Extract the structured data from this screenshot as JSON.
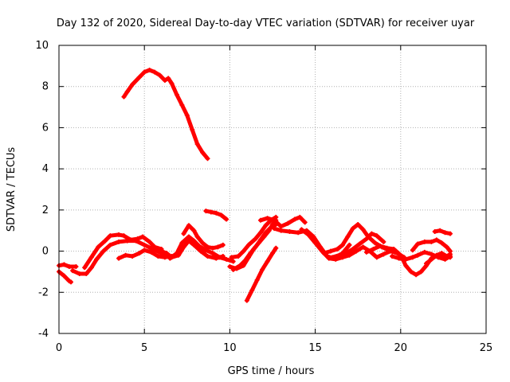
{
  "chart_data": {
    "type": "scatter",
    "title": "Day 132 of 2020, Sidereal Day-to-day VTEC variation (SDTVAR) for receiver uyar",
    "xlabel": "GPS time / hours",
    "ylabel": "SDTVAR / TECUs",
    "xlim": [
      0,
      25
    ],
    "ylim": [
      -4,
      10
    ],
    "grid": true,
    "x_ticks": [
      0,
      5,
      10,
      15,
      20,
      25
    ],
    "y_ticks": [
      -4,
      -2,
      0,
      2,
      4,
      6,
      8,
      10
    ],
    "x_tick_labels": [
      "0",
      "5",
      "10",
      "15",
      "20",
      "25"
    ],
    "y_tick_labels": [
      "-4",
      "-2",
      "0",
      "2",
      "4",
      "6",
      "8",
      "10"
    ],
    "color": "#ff0000",
    "series": [
      {
        "name": "s1",
        "points": [
          [
            0.0,
            -1.0
          ],
          [
            0.3,
            -1.2
          ],
          [
            0.6,
            -1.45
          ],
          [
            0.7,
            -1.5
          ]
        ]
      },
      {
        "name": "s2",
        "points": [
          [
            0.0,
            -0.7
          ],
          [
            0.3,
            -0.65
          ],
          [
            0.6,
            -0.75
          ],
          [
            1.0,
            -0.75
          ]
        ]
      },
      {
        "name": "s3",
        "points": [
          [
            0.8,
            -0.95
          ],
          [
            1.2,
            -1.1
          ],
          [
            1.6,
            -1.1
          ],
          [
            1.9,
            -0.8
          ],
          [
            2.2,
            -0.4
          ],
          [
            2.6,
            0.0
          ],
          [
            3.0,
            0.3
          ],
          [
            3.5,
            0.45
          ],
          [
            4.0,
            0.5
          ],
          [
            4.5,
            0.5
          ],
          [
            5.0,
            0.3
          ],
          [
            5.5,
            0.1
          ],
          [
            6.0,
            -0.1
          ],
          [
            6.5,
            -0.3
          ]
        ]
      },
      {
        "name": "s4",
        "points": [
          [
            1.5,
            -0.8
          ],
          [
            1.9,
            -0.3
          ],
          [
            2.3,
            0.2
          ],
          [
            2.7,
            0.5
          ],
          [
            3.0,
            0.75
          ],
          [
            3.5,
            0.8
          ],
          [
            3.8,
            0.75
          ],
          [
            4.2,
            0.55
          ],
          [
            4.6,
            0.6
          ],
          [
            4.9,
            0.7
          ],
          [
            5.3,
            0.45
          ],
          [
            5.6,
            0.2
          ],
          [
            6.0,
            0.1
          ]
        ]
      },
      {
        "name": "s5",
        "points": [
          [
            3.5,
            -0.35
          ],
          [
            3.9,
            -0.2
          ],
          [
            4.3,
            -0.25
          ],
          [
            4.7,
            -0.1
          ],
          [
            5.0,
            0.05
          ],
          [
            5.4,
            -0.05
          ],
          [
            5.8,
            -0.25
          ],
          [
            6.2,
            -0.3
          ],
          [
            6.6,
            -0.25
          ]
        ]
      },
      {
        "name": "s6",
        "points": [
          [
            3.8,
            7.5
          ],
          [
            4.0,
            7.75
          ],
          [
            4.3,
            8.1
          ],
          [
            4.7,
            8.45
          ],
          [
            5.0,
            8.7
          ],
          [
            5.3,
            8.8
          ],
          [
            5.6,
            8.7
          ],
          [
            5.9,
            8.55
          ],
          [
            6.2,
            8.3
          ],
          [
            6.4,
            8.4
          ],
          [
            6.6,
            8.15
          ],
          [
            6.9,
            7.6
          ],
          [
            7.2,
            7.1
          ],
          [
            7.5,
            6.6
          ],
          [
            7.8,
            5.9
          ],
          [
            8.1,
            5.2
          ],
          [
            8.4,
            4.8
          ],
          [
            8.7,
            4.5
          ]
        ]
      },
      {
        "name": "s7",
        "points": [
          [
            5.5,
            0.2
          ],
          [
            6.0,
            0.0
          ],
          [
            6.3,
            -0.1
          ],
          [
            6.6,
            -0.3
          ],
          [
            7.0,
            -0.2
          ],
          [
            7.3,
            0.2
          ],
          [
            7.6,
            0.5
          ],
          [
            7.9,
            0.3
          ],
          [
            8.3,
            0.0
          ],
          [
            8.7,
            -0.25
          ],
          [
            9.2,
            -0.35
          ],
          [
            9.6,
            -0.25
          ]
        ]
      },
      {
        "name": "s8",
        "points": [
          [
            6.5,
            -0.35
          ],
          [
            6.9,
            -0.1
          ],
          [
            7.2,
            0.4
          ],
          [
            7.6,
            0.7
          ],
          [
            7.9,
            0.5
          ],
          [
            8.2,
            0.25
          ],
          [
            8.6,
            0.05
          ],
          [
            9.0,
            -0.1
          ],
          [
            9.4,
            -0.3
          ],
          [
            9.8,
            -0.4
          ],
          [
            10.2,
            -0.5
          ]
        ]
      },
      {
        "name": "s9",
        "points": [
          [
            7.3,
            0.85
          ],
          [
            7.6,
            1.25
          ],
          [
            7.9,
            1.0
          ],
          [
            8.1,
            0.7
          ],
          [
            8.4,
            0.4
          ],
          [
            8.7,
            0.2
          ],
          [
            9.0,
            0.15
          ],
          [
            9.3,
            0.2
          ],
          [
            9.6,
            0.3
          ]
        ]
      },
      {
        "name": "s10",
        "points": [
          [
            8.6,
            1.95
          ],
          [
            8.9,
            1.9
          ],
          [
            9.2,
            1.85
          ],
          [
            9.5,
            1.75
          ],
          [
            9.8,
            1.55
          ]
        ]
      },
      {
        "name": "s11",
        "points": [
          [
            10.0,
            -0.75
          ],
          [
            10.4,
            -0.85
          ],
          [
            10.8,
            -0.7
          ],
          [
            11.1,
            -0.3
          ],
          [
            11.4,
            0.1
          ],
          [
            11.7,
            0.4
          ],
          [
            12.0,
            0.7
          ],
          [
            12.3,
            1.0
          ],
          [
            12.5,
            1.3
          ],
          [
            12.7,
            1.5
          ]
        ]
      },
      {
        "name": "s12",
        "points": [
          [
            10.1,
            -0.3
          ],
          [
            10.5,
            -0.25
          ],
          [
            10.8,
            0.0
          ],
          [
            11.1,
            0.3
          ],
          [
            11.5,
            0.6
          ],
          [
            11.8,
            0.9
          ],
          [
            12.1,
            1.25
          ],
          [
            12.4,
            1.5
          ],
          [
            12.7,
            1.65
          ]
        ]
      },
      {
        "name": "s13",
        "points": [
          [
            11.0,
            -2.4
          ],
          [
            11.3,
            -1.9
          ],
          [
            11.6,
            -1.4
          ],
          [
            11.9,
            -0.9
          ],
          [
            12.2,
            -0.5
          ],
          [
            12.5,
            -0.1
          ],
          [
            12.7,
            0.15
          ]
        ]
      },
      {
        "name": "s14",
        "points": [
          [
            10.2,
            -0.9
          ],
          [
            10.6,
            -0.7
          ],
          [
            10.9,
            -0.45
          ],
          [
            11.2,
            -0.1
          ],
          [
            11.5,
            0.2
          ],
          [
            11.8,
            0.55
          ],
          [
            12.1,
            0.9
          ],
          [
            12.4,
            1.15
          ],
          [
            12.7,
            1.3
          ]
        ]
      },
      {
        "name": "s15",
        "points": [
          [
            11.8,
            1.5
          ],
          [
            12.2,
            1.6
          ],
          [
            12.6,
            1.5
          ],
          [
            13.0,
            1.2
          ],
          [
            13.4,
            1.35
          ],
          [
            13.8,
            1.55
          ],
          [
            14.1,
            1.65
          ],
          [
            14.4,
            1.4
          ]
        ]
      },
      {
        "name": "s16",
        "points": [
          [
            12.6,
            1.1
          ],
          [
            13.0,
            1.0
          ],
          [
            13.5,
            0.95
          ],
          [
            14.0,
            0.9
          ],
          [
            14.5,
            1.0
          ],
          [
            14.9,
            0.7
          ],
          [
            15.3,
            0.2
          ],
          [
            15.7,
            -0.25
          ],
          [
            16.1,
            -0.35
          ],
          [
            16.6,
            -0.1
          ],
          [
            17.0,
            0.3
          ]
        ]
      },
      {
        "name": "s17",
        "points": [
          [
            14.2,
            1.05
          ],
          [
            14.6,
            0.8
          ],
          [
            15.0,
            0.4
          ],
          [
            15.4,
            0.0
          ],
          [
            15.8,
            -0.35
          ],
          [
            16.2,
            -0.4
          ],
          [
            16.6,
            -0.3
          ],
          [
            17.0,
            -0.2
          ],
          [
            17.4,
            0.0
          ],
          [
            17.8,
            0.2
          ],
          [
            18.2,
            0.0
          ],
          [
            18.6,
            -0.3
          ],
          [
            19.0,
            -0.15
          ],
          [
            19.4,
            0.0
          ],
          [
            19.8,
            -0.1
          ],
          [
            20.2,
            -0.3
          ]
        ]
      },
      {
        "name": "s18",
        "points": [
          [
            15.5,
            -0.1
          ],
          [
            15.9,
            0.0
          ],
          [
            16.3,
            0.1
          ],
          [
            16.6,
            0.3
          ],
          [
            16.9,
            0.7
          ],
          [
            17.2,
            1.1
          ],
          [
            17.5,
            1.3
          ],
          [
            17.8,
            1.05
          ],
          [
            18.1,
            0.7
          ],
          [
            18.5,
            0.4
          ],
          [
            18.9,
            0.2
          ],
          [
            19.3,
            0.05
          ]
        ]
      },
      {
        "name": "s19",
        "points": [
          [
            16.0,
            -0.3
          ],
          [
            16.4,
            -0.2
          ],
          [
            16.8,
            -0.1
          ],
          [
            17.2,
            0.1
          ],
          [
            17.6,
            0.35
          ],
          [
            18.0,
            0.6
          ],
          [
            18.3,
            0.85
          ],
          [
            18.6,
            0.75
          ],
          [
            19.0,
            0.45
          ]
        ]
      },
      {
        "name": "s20",
        "points": [
          [
            18.0,
            -0.05
          ],
          [
            18.4,
            0.1
          ],
          [
            18.8,
            0.25
          ],
          [
            19.2,
            0.15
          ],
          [
            19.6,
            0.1
          ],
          [
            20.0,
            -0.2
          ],
          [
            20.3,
            -0.7
          ],
          [
            20.6,
            -1.0
          ],
          [
            20.9,
            -1.15
          ],
          [
            21.2,
            -1.0
          ],
          [
            21.5,
            -0.7
          ],
          [
            21.8,
            -0.35
          ],
          [
            22.2,
            -0.2
          ],
          [
            22.6,
            -0.3
          ],
          [
            22.9,
            -0.15
          ]
        ]
      },
      {
        "name": "s21",
        "points": [
          [
            19.5,
            -0.25
          ],
          [
            19.9,
            -0.35
          ],
          [
            20.3,
            -0.4
          ],
          [
            20.7,
            -0.3
          ],
          [
            21.0,
            -0.2
          ],
          [
            21.4,
            -0.05
          ],
          [
            21.8,
            -0.15
          ],
          [
            22.2,
            -0.3
          ],
          [
            22.6,
            -0.4
          ],
          [
            22.9,
            -0.25
          ]
        ]
      },
      {
        "name": "s22",
        "points": [
          [
            20.7,
            0.05
          ],
          [
            21.0,
            0.35
          ],
          [
            21.4,
            0.45
          ],
          [
            21.8,
            0.45
          ],
          [
            22.1,
            0.55
          ],
          [
            22.4,
            0.4
          ],
          [
            22.7,
            0.2
          ],
          [
            22.9,
            0.0
          ]
        ]
      },
      {
        "name": "s23",
        "points": [
          [
            21.5,
            -0.6
          ],
          [
            21.8,
            -0.4
          ],
          [
            22.1,
            -0.2
          ],
          [
            22.4,
            -0.1
          ],
          [
            22.7,
            -0.25
          ],
          [
            22.9,
            -0.3
          ]
        ]
      },
      {
        "name": "s24",
        "points": [
          [
            22.0,
            0.95
          ],
          [
            22.3,
            1.0
          ],
          [
            22.6,
            0.9
          ],
          [
            22.9,
            0.85
          ]
        ]
      }
    ]
  }
}
